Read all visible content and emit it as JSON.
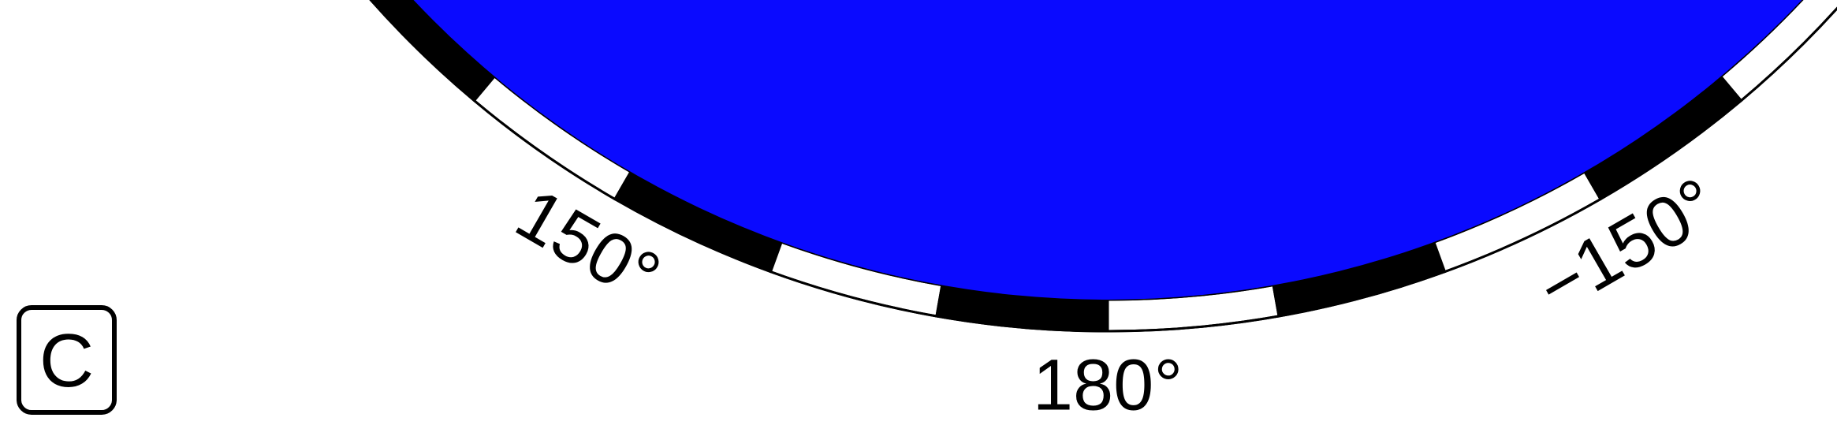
{
  "map": {
    "ocean_color": "#0a0aff",
    "frame_colors": [
      "#000000",
      "#ffffff"
    ],
    "frame_interval_deg": 10,
    "visible_lon_range": [
      130,
      230
    ],
    "labels": [
      {
        "lon": -150,
        "text": "−150°"
      },
      {
        "lon": 180,
        "text": "180°"
      },
      {
        "lon": 150,
        "text": "150°"
      }
    ]
  },
  "panel": {
    "label": "C"
  }
}
